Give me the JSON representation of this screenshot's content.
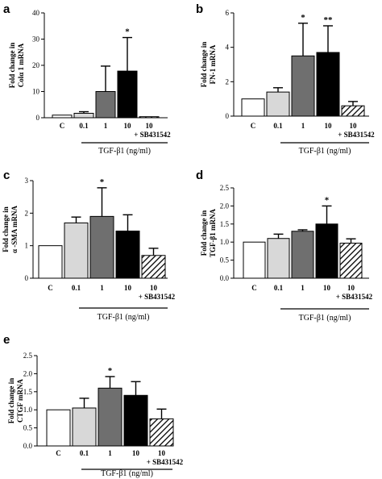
{
  "chart_data": [
    {
      "type": "bar",
      "panel": "a",
      "ylabel": [
        "Fold change in",
        "Colα 1 mRNA"
      ],
      "ylim": [
        0,
        40
      ],
      "yticks": [
        0,
        10,
        20,
        30,
        40
      ],
      "categories": [
        "C",
        "0.1",
        "1",
        "10",
        "10"
      ],
      "extra_label": "+ SB431542",
      "group_label": "TGF-β1 (ng/ml)",
      "values": [
        1.0,
        1.7,
        10.0,
        17.8,
        0.4
      ],
      "errors": [
        0,
        0.6,
        9.7,
        12.8,
        0
      ],
      "fills": [
        "white",
        "light",
        "gray",
        "black",
        "hatch"
      ],
      "significance": [
        "",
        "",
        "",
        "*",
        ""
      ]
    },
    {
      "type": "bar",
      "panel": "b",
      "ylabel": [
        "Fold change in",
        "FN-1 mRNA"
      ],
      "ylim": [
        0,
        6
      ],
      "yticks": [
        0,
        2,
        4,
        6
      ],
      "categories": [
        "C",
        "0.1",
        "1",
        "10",
        "10"
      ],
      "extra_label": "+ SB431542",
      "group_label": "TGF-β1 (ng/ml)",
      "values": [
        1.0,
        1.4,
        3.5,
        3.7,
        0.6
      ],
      "errors": [
        0,
        0.25,
        1.9,
        1.55,
        0.25
      ],
      "fills": [
        "white",
        "light",
        "gray",
        "black",
        "hatch"
      ],
      "significance": [
        "",
        "",
        "*",
        "**",
        ""
      ]
    },
    {
      "type": "bar",
      "panel": "c",
      "ylabel": [
        "Fold change in",
        "α -SMA mRNA"
      ],
      "ylim": [
        0,
        3
      ],
      "yticks": [
        0,
        1,
        2,
        3
      ],
      "categories": [
        "C",
        "0.1",
        "1",
        "10",
        "10"
      ],
      "extra_label": "+ SB431542",
      "group_label": "TGF-β1 (ng/ml)",
      "values": [
        1.0,
        1.7,
        1.9,
        1.45,
        0.7
      ],
      "errors": [
        0,
        0.18,
        0.88,
        0.5,
        0.22
      ],
      "fills": [
        "white",
        "light",
        "gray",
        "black",
        "hatch"
      ],
      "significance": [
        "",
        "",
        "*",
        "",
        ""
      ]
    },
    {
      "type": "bar",
      "panel": "d",
      "ylabel": [
        "Fold change in",
        "TGF-β1 mRNA"
      ],
      "ylim": [
        0,
        2.5
      ],
      "yticks": [
        0.0,
        0.5,
        1.0,
        1.5,
        2.0,
        2.5
      ],
      "tick_format": 1,
      "categories": [
        "C",
        "0.1",
        "1",
        "10",
        "10"
      ],
      "extra_label": "+ SB431542",
      "group_label": "TGF-β1 (ng/ml)",
      "values": [
        1.0,
        1.1,
        1.3,
        1.5,
        0.97
      ],
      "errors": [
        0,
        0.12,
        0.04,
        0.5,
        0.12
      ],
      "fills": [
        "white",
        "light",
        "gray",
        "black",
        "hatch"
      ],
      "significance": [
        "",
        "",
        "",
        "*",
        ""
      ]
    },
    {
      "type": "bar",
      "panel": "e",
      "ylabel": [
        "Fold change in",
        "CTGF mRNA"
      ],
      "ylim": [
        0,
        2.5
      ],
      "yticks": [
        0.0,
        0.5,
        1.0,
        1.5,
        2.0,
        2.5
      ],
      "tick_format": 1,
      "categories": [
        "C",
        "0.1",
        "1",
        "10",
        "10"
      ],
      "extra_label": "+ SB431542",
      "group_label": "TGF-β1 (ng/ml)",
      "values": [
        1.0,
        1.05,
        1.6,
        1.4,
        0.75
      ],
      "errors": [
        0,
        0.27,
        0.32,
        0.38,
        0.27
      ],
      "fills": [
        "white",
        "light",
        "gray",
        "black",
        "hatch"
      ],
      "significance": [
        "",
        "",
        "*",
        "",
        ""
      ]
    }
  ],
  "colors": {
    "white": "#ffffff",
    "light": "#d8d8d8",
    "gray": "#6f6f6f",
    "black": "#000000",
    "axis": "#000000"
  }
}
